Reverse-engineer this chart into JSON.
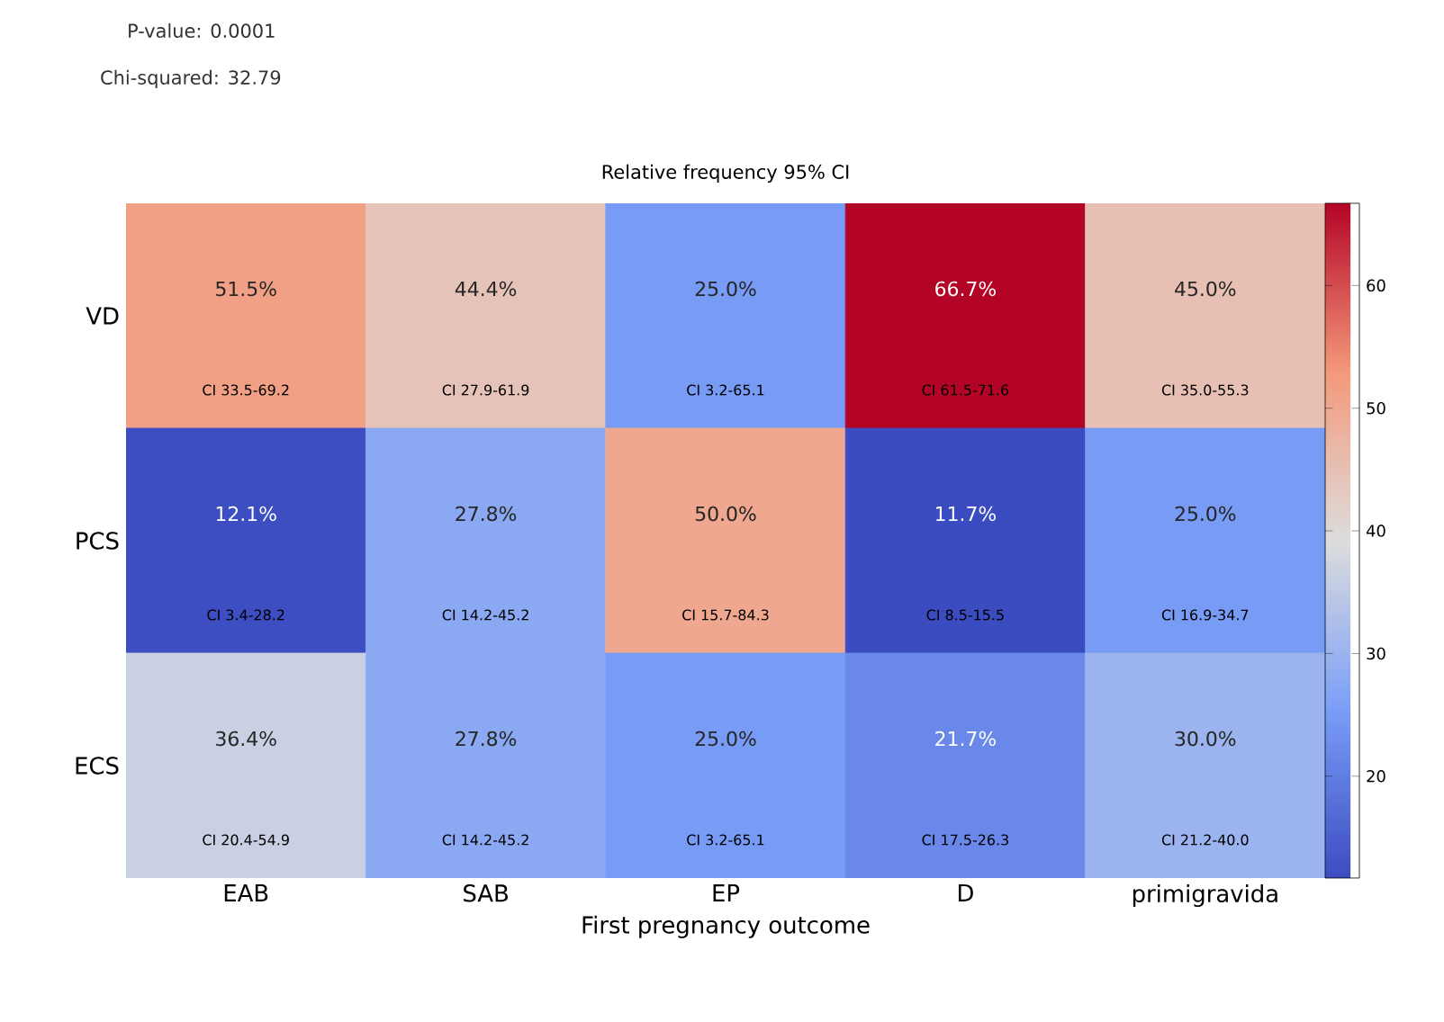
{
  "chart_data": {
    "type": "heatmap",
    "title": "Relative frequency 95% CI",
    "xlabel": "First pregnancy outcome",
    "categories": [
      "EAB",
      "SAB",
      "EP",
      "D",
      "primigravida"
    ],
    "y_categories": [
      "VD",
      "PCS",
      "ECS"
    ],
    "cells": [
      [
        51.5,
        44.4,
        25.0,
        66.7,
        45.0
      ],
      [
        12.1,
        27.8,
        50.0,
        11.7,
        25.0
      ],
      [
        36.4,
        27.8,
        25.0,
        21.7,
        30.0
      ]
    ],
    "cell_labels": [
      [
        "51.5%",
        "44.4%",
        "25.0%",
        "66.7%",
        "45.0%"
      ],
      [
        "12.1%",
        "27.8%",
        "50.0%",
        "11.7%",
        "25.0%"
      ],
      [
        "36.4%",
        "27.8%",
        "25.0%",
        "21.7%",
        "30.0%"
      ]
    ],
    "clim": [
      11.7,
      66.7
    ],
    "cticks": [
      20,
      30,
      40,
      50,
      60
    ],
    "annotations": [
      "P-value: 0.0001",
      "Chi-squared: 32.79",
      "CI 33.5-69.2",
      "CI 27.9-61.9",
      "CI 3.2-65.1",
      "CI 61.5-71.6",
      "CI 35.0-55.3",
      "CI 3.4-28.2",
      "CI 14.2-45.2",
      "CI 15.7-84.3",
      "CI 8.5-15.5",
      "CI 16.9-34.7",
      "CI 20.4-54.9",
      "CI 14.2-45.2",
      "CI 3.2-65.1",
      "CI 17.5-26.3",
      "CI 21.2-40.0"
    ]
  }
}
